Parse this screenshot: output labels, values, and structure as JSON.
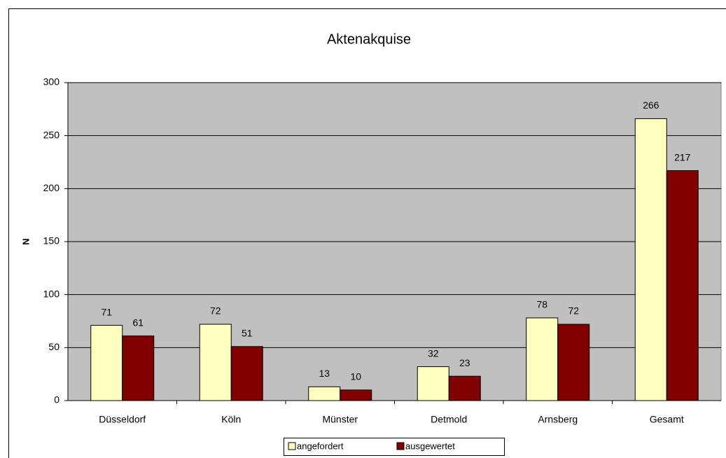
{
  "chart_data": {
    "type": "bar",
    "title": "Aktenakquise",
    "y_label": "N",
    "categories": [
      "Düsseldorf",
      "Köln",
      "Münster",
      "Detmold",
      "Arnsberg",
      "Gesamt"
    ],
    "series": [
      {
        "name": "angefordert",
        "color": "#ffffc0",
        "values": [
          71,
          72,
          13,
          32,
          78,
          266
        ]
      },
      {
        "name": "ausgewertet",
        "color": "#800000",
        "values": [
          61,
          51,
          10,
          23,
          72,
          217
        ]
      }
    ],
    "ylim": [
      0,
      300
    ],
    "yticks": [
      0,
      50,
      100,
      150,
      200,
      250,
      300
    ],
    "grid": true,
    "plot_background": "#c0c0c0"
  }
}
